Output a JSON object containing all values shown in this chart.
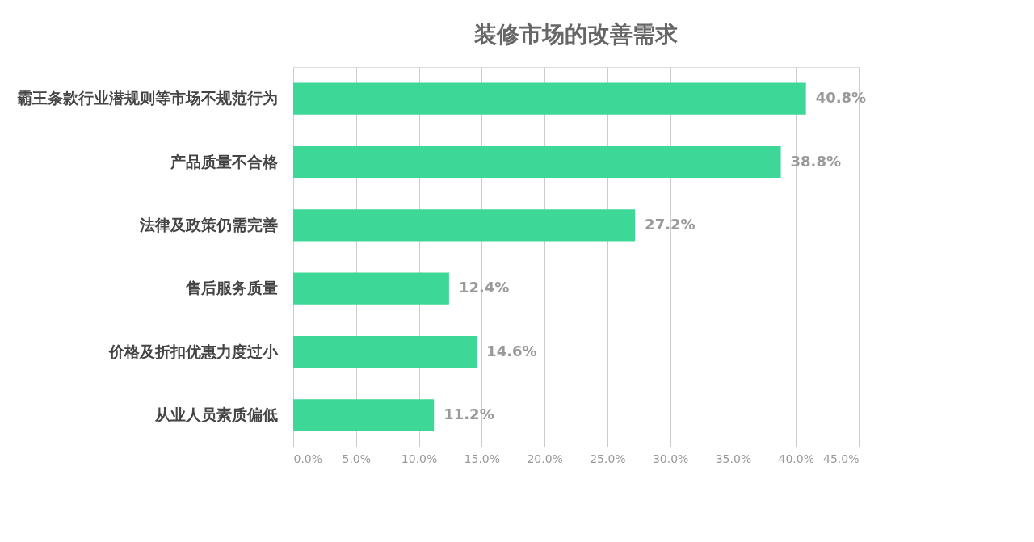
{
  "chart_data": {
    "type": "bar",
    "orientation": "horizontal",
    "title": "装修市场的改善需求",
    "categories": [
      "霸王条款行业潜规则等市场不规范行为",
      "产品质量不合格",
      "法律及政策仍需完善",
      "售后服务质量",
      "价格及折扣优惠力度过小",
      "从业人员素质偏低"
    ],
    "values": [
      40.8,
      38.8,
      27.2,
      12.4,
      14.6,
      11.2
    ],
    "value_labels": [
      "40.8%",
      "38.8%",
      "27.2%",
      "12.4%",
      "14.6%",
      "11.2%"
    ],
    "color": "#3dd897",
    "xlim": [
      0,
      45
    ],
    "xticks": [
      {
        "value": 0,
        "label": "0.0%"
      },
      {
        "value": 5,
        "label": "5.0%"
      },
      {
        "value": 10,
        "label": "10.0%"
      },
      {
        "value": 15,
        "label": "15.0%"
      },
      {
        "value": 20,
        "label": "20.0%"
      },
      {
        "value": 25,
        "label": "25.0%"
      },
      {
        "value": 30,
        "label": "30.0%"
      },
      {
        "value": 35,
        "label": "35.0%"
      },
      {
        "value": 40,
        "label": "40.0%"
      },
      {
        "value": 45,
        "label": "45.0%"
      }
    ],
    "grid": "x"
  }
}
